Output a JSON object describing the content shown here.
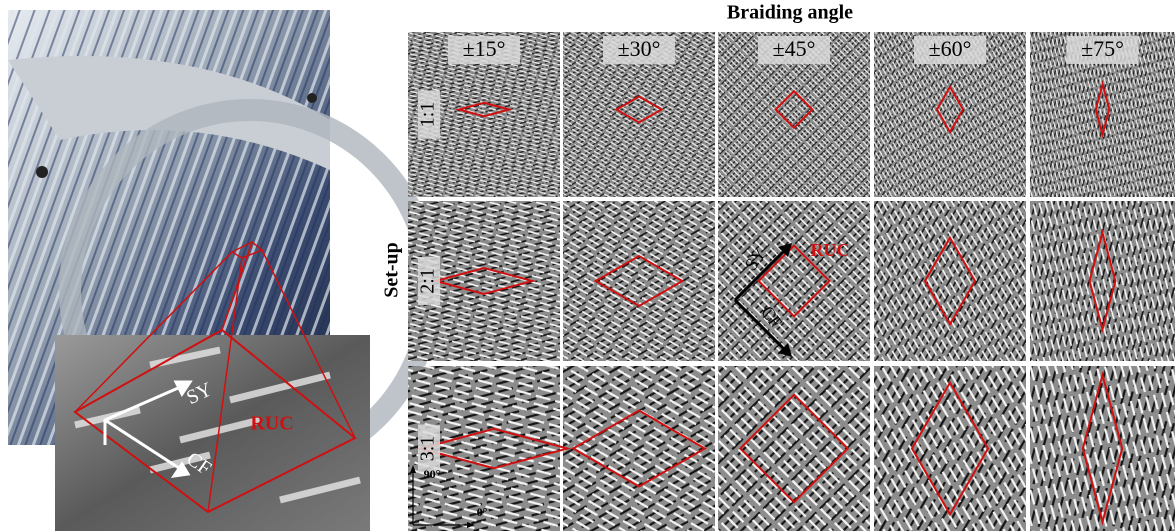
{
  "title": "Braiding angle",
  "row_axis_label": "Set-up",
  "columns": [
    "±15°",
    "±30°",
    "±45°",
    "±60°",
    "±75°"
  ],
  "rows": [
    "1:1",
    "2:1",
    "3:1"
  ],
  "photo_labels": {
    "sy": "SY",
    "cf": "CF",
    "ruc": "RUC"
  },
  "grid_annotations": {
    "sy": "SY",
    "cf": "CF",
    "ruc": "RUC",
    "axis_90": "90°",
    "axis_0": "0°"
  }
}
